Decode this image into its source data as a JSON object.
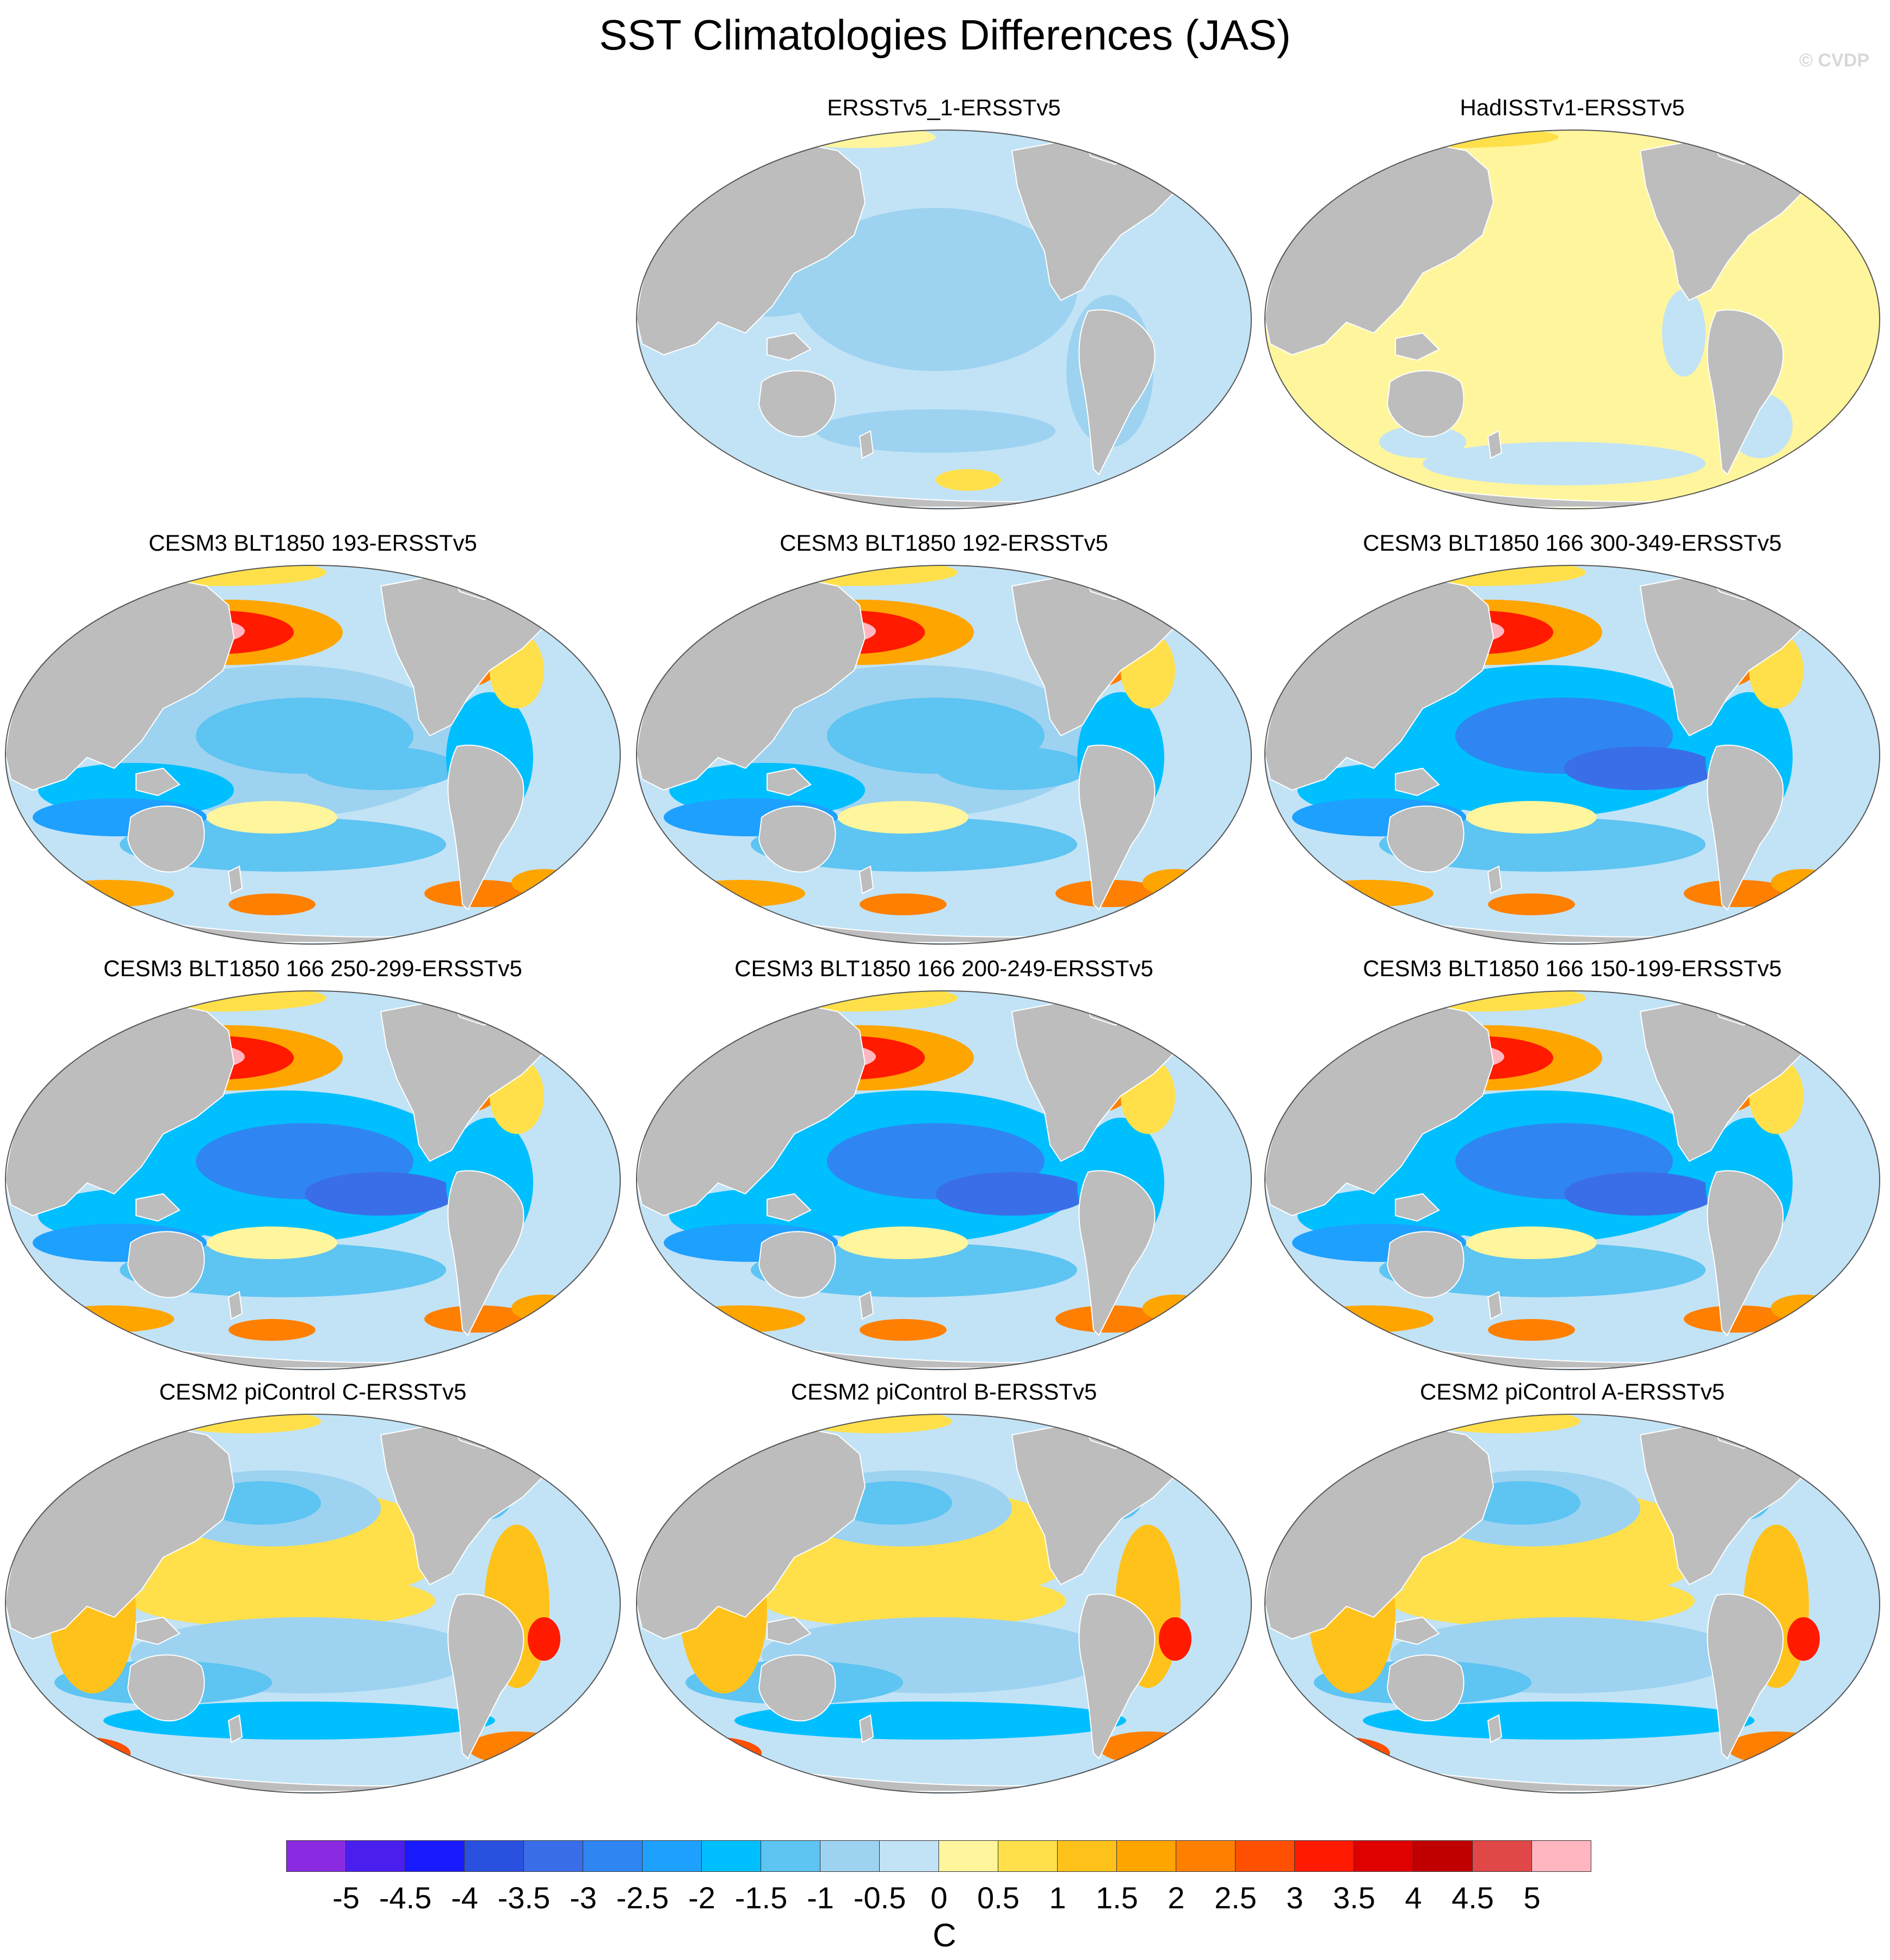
{
  "title": "SST Climatologies Differences (JAS)",
  "copyright": "© CVDP",
  "colors": {
    "land": "#bdbdbd",
    "coast": "#ffffff",
    "border": "#555555"
  },
  "panels": [
    {
      "title": "ERSSTv5_1-ERSSTv5",
      "pattern": "uniform-cool"
    },
    {
      "title": "HadISSTv1-ERSSTv5",
      "pattern": "uniform-warm"
    },
    {
      "title": "CESM3 BLT1850 193-ERSSTv5",
      "pattern": "blt-mild"
    },
    {
      "title": "CESM3 BLT1850 192-ERSSTv5",
      "pattern": "blt-mild"
    },
    {
      "title": "CESM3 BLT1850 166 300-349-ERSSTv5",
      "pattern": "blt-strong"
    },
    {
      "title": "CESM3 BLT1850 166 250-299-ERSSTv5",
      "pattern": "blt-strong"
    },
    {
      "title": "CESM3 BLT1850 166 200-249-ERSSTv5",
      "pattern": "blt-strong"
    },
    {
      "title": "CESM3 BLT1850 166 150-199-ERSSTv5",
      "pattern": "blt-strong"
    },
    {
      "title": "CESM2 piControl C-ERSSTv5",
      "pattern": "cesm2"
    },
    {
      "title": "CESM2 piControl B-ERSSTv5",
      "pattern": "cesm2"
    },
    {
      "title": "CESM2 piControl A-ERSSTv5",
      "pattern": "cesm2"
    }
  ],
  "colorbar": {
    "unit": "C",
    "ticks": [
      "-5",
      "-4.5",
      "-4",
      "-3.5",
      "-3",
      "-2.5",
      "-2",
      "-1.5",
      "-1",
      "-0.5",
      "0",
      "0.5",
      "1",
      "1.5",
      "2",
      "2.5",
      "3",
      "3.5",
      "4",
      "4.5",
      "5"
    ],
    "colors": [
      "#8a2be2",
      "#4b1ef0",
      "#1a1aff",
      "#2a50e0",
      "#3a6ee8",
      "#2f86f2",
      "#1ea0ff",
      "#00bfff",
      "#5ec4f2",
      "#9dd3f0",
      "#c2e3f6",
      "#fff59d",
      "#ffe04a",
      "#ffc21a",
      "#ffa500",
      "#ff7f00",
      "#ff4f00",
      "#ff1a00",
      "#e00000",
      "#c00000",
      "#e04848",
      "#ffb6c1"
    ]
  }
}
